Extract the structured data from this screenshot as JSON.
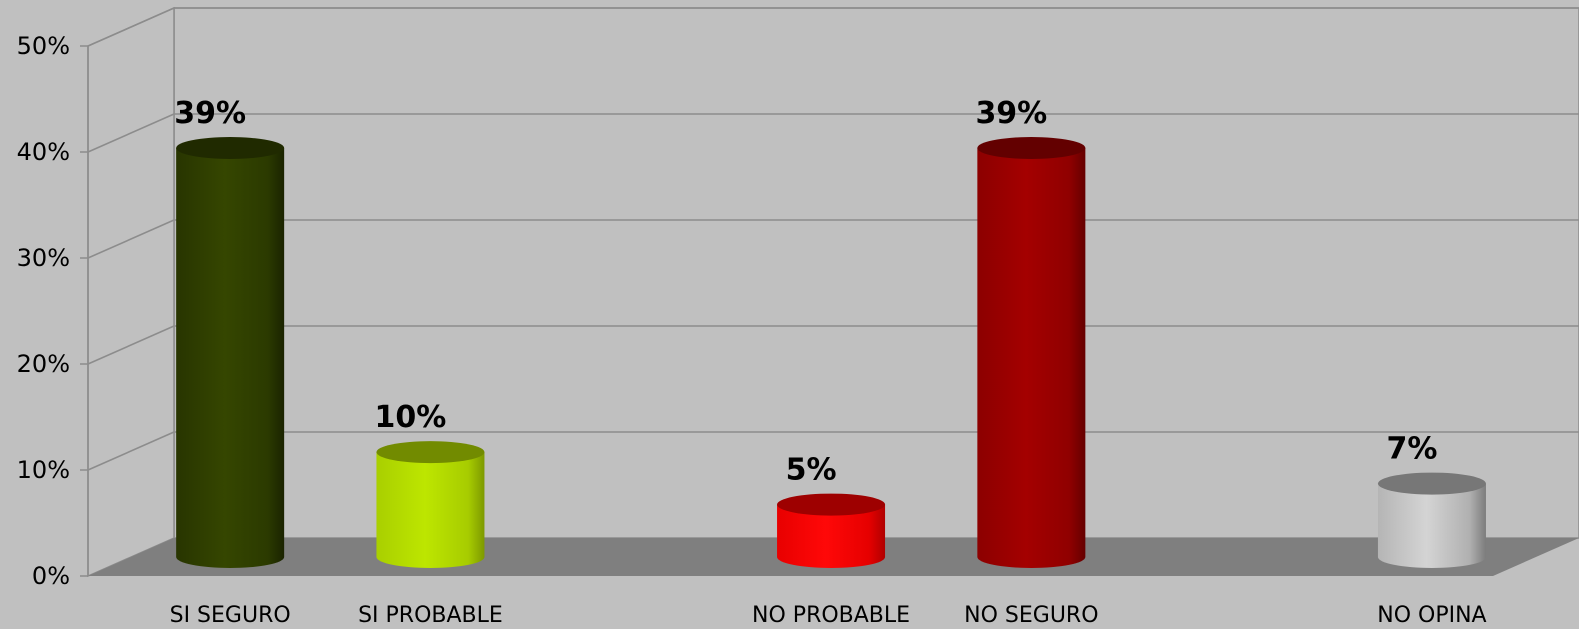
{
  "chart_data": {
    "type": "bar",
    "style": "3d-cylinder",
    "categories": [
      "SI SEGURO",
      "SI PROBABLE",
      "",
      "NO PROBABLE",
      "NO SEGURO",
      "",
      "NO OPINA"
    ],
    "values": [
      0.39,
      0.1,
      null,
      0.05,
      0.39,
      null,
      0.07
    ],
    "data_labels": [
      "39%",
      "10%",
      "",
      "5%",
      "39%",
      "",
      "7%"
    ],
    "bar_colors": [
      "#334400",
      "#b8e000",
      null,
      "#ff0000",
      "#a00000",
      null,
      "#c0c0c0"
    ],
    "y_ticks": [
      "0%",
      "10%",
      "20%",
      "30%",
      "40%",
      "50%"
    ],
    "ylim": [
      0,
      0.5
    ],
    "grid": true,
    "legend": "none",
    "colors": {
      "background": "#c0c0c0",
      "floor": "#7f7f7f",
      "gridline": "#8c8c8c"
    }
  }
}
